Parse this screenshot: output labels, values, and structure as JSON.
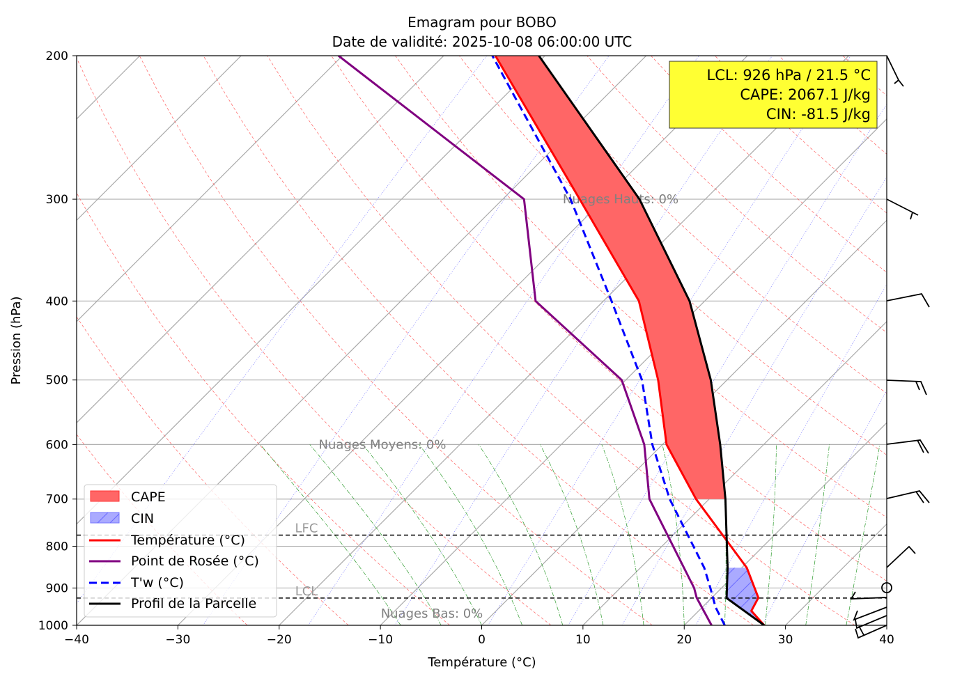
{
  "chart_data": {
    "type": "line",
    "subtype": "skew-T emagram",
    "title": "Emagram pour BOBO",
    "subtitle": "Date de validité: 2025-10-08 06:00:00 UTC",
    "xlabel": "Température (°C)",
    "ylabel": "Pression (hPa)",
    "xlim": [
      -40,
      40
    ],
    "ylim": [
      1000,
      200
    ],
    "x_ticks": [
      -40,
      -30,
      -20,
      -10,
      0,
      10,
      20,
      30,
      40
    ],
    "x_tick_labels": [
      "−40",
      "−30",
      "−20",
      "−10",
      "0",
      "10",
      "20",
      "30",
      "40"
    ],
    "y_ticks": [
      200,
      300,
      400,
      500,
      600,
      700,
      800,
      900,
      1000
    ],
    "y_tick_labels": [
      "200",
      "300",
      "400",
      "500",
      "600",
      "700",
      "800",
      "900",
      "1000"
    ],
    "grid": true,
    "legend_position": "bottom-left",
    "legend": [
      "CAPE",
      "CIN",
      "Température (°C)",
      "Point de Rosée (°C)",
      "T'w (°C)",
      "Profil de la Parcelle"
    ],
    "series": [
      {
        "name": "Température (°C)",
        "color": "#ff0000",
        "style": "solid",
        "pressure": [
          1000,
          960,
          925,
          850,
          700,
          600,
          500,
          400,
          300,
          200
        ],
        "values": [
          27.9,
          25.2,
          24.6,
          20.5,
          8.7,
          0.4,
          -6.8,
          -16.5,
          -32.4,
          -54.9
        ]
      },
      {
        "name": "Point de Rosée (°C)",
        "color": "#800080",
        "style": "solid",
        "pressure": [
          1000,
          925,
          900,
          700,
          600,
          500,
          400,
          300,
          200
        ],
        "values": [
          22.7,
          18.5,
          17.3,
          4.1,
          -1.8,
          -10.4,
          -26.7,
          -37.9,
          -70.4
        ]
      },
      {
        "name": "T'w (°C)",
        "color": "#0000ff",
        "style": "dashed",
        "pressure": [
          1000,
          950,
          900,
          850,
          700,
          600,
          500,
          400,
          300,
          200
        ],
        "values": [
          24.0,
          21.3,
          18.9,
          16.3,
          6.1,
          -1.0,
          -8.4,
          -19.2,
          -33.3,
          -55.2
        ]
      },
      {
        "name": "Profil de la Parcelle",
        "color": "#000000",
        "style": "solid",
        "pressure": [
          1000,
          926,
          850,
          700,
          600,
          500,
          400,
          300,
          200
        ],
        "values": [
          27.9,
          21.5,
          18.6,
          11.6,
          5.7,
          -1.6,
          -11.5,
          -26.5,
          -50.6
        ]
      }
    ],
    "levels": [
      {
        "name": "LFC",
        "pressure": 775
      },
      {
        "name": "LCL",
        "pressure": 926
      }
    ],
    "cloud_labels": [
      {
        "text": "Nuages Hauts: 0%",
        "pressure": 300
      },
      {
        "text": "Nuages Moyens: 0%",
        "pressure": 600
      },
      {
        "text": "Nuages Bas: 0%",
        "pressure": 930
      }
    ],
    "info_box": {
      "lines": [
        "LCL: 926 hPa / 21.5 °C",
        "CAPE: 2067.1 J/kg",
        "CIN: -81.5 J/kg"
      ],
      "background": "#ffff33"
    },
    "wind_barb_pressures": [
      200,
      300,
      400,
      500,
      600,
      700,
      850,
      900,
      925,
      950,
      975,
      1000
    ],
    "colors": {
      "cape": "#ff6666",
      "cin": "#aaaaff"
    }
  }
}
